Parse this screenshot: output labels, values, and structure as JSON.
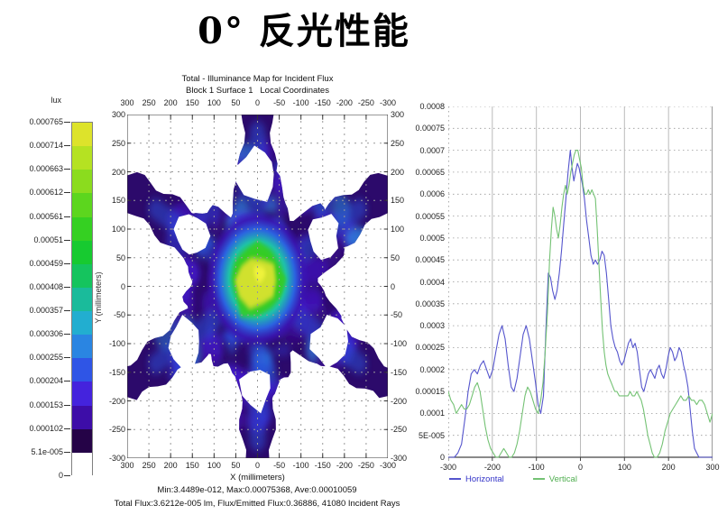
{
  "page_title": "0° 反光性能",
  "colorbar": {
    "unit": "lux",
    "labels_top_to_bottom": [
      "0.000765",
      "0.000714",
      "0.000663",
      "0.000612",
      "0.000561",
      "0.00051",
      "0.000459",
      "0.000408",
      "0.000357",
      "0.000306",
      "0.000255",
      "0.000204",
      "0.000153",
      "0.000102",
      "5.1e-005",
      "0"
    ],
    "segment_colors_top_to_bottom": [
      "#dde32b",
      "#b5e222",
      "#8bdc1e",
      "#5cd61e",
      "#35d022",
      "#17ca30",
      "#15c45e",
      "#1abb9b",
      "#22aed0",
      "#2a85e2",
      "#2f55e6",
      "#4423dd",
      "#3d0da8",
      "#250347",
      "#ffffff"
    ]
  },
  "map": {
    "title_line1": "Total - Illuminance Map for Incident Flux",
    "title_line2": "Block 1 Surface 1   Local Coordinates",
    "x_axis_label": "X (millimeters)",
    "y_axis_label": "Y (millimeters)",
    "x_ticks": [
      "300",
      "250",
      "200",
      "150",
      "100",
      "50",
      "0",
      "-50",
      "-100",
      "-150",
      "-200",
      "-250",
      "-300"
    ],
    "y_ticks": [
      "300",
      "250",
      "200",
      "150",
      "100",
      "50",
      "0",
      "-50",
      "-100",
      "-150",
      "-200",
      "-250",
      "-300"
    ],
    "stats_line1": "Min:3.4489e-012, Max:0.00075368, Ave:0.00010059",
    "stats_line2": "Total Flux:3.6212e-005 lm, Flux/Emitted Flux:0.36886, 41080 Incident Rays"
  },
  "chart_data": [
    {
      "type": "heatmap",
      "title": "Total - Illuminance Map for Incident Flux",
      "subtitle": "Block 1 Surface 1 Local Coordinates",
      "xlabel": "X (millimeters)",
      "ylabel": "Y (millimeters)",
      "units": "lux",
      "x_range": [
        300,
        -300
      ],
      "y_range": [
        -300,
        300
      ],
      "grid_step_mm": 50,
      "min": 3.4489e-12,
      "max": 0.00075368,
      "ave": 0.00010059,
      "total_flux_lm": 3.6212e-05,
      "flux_emitted_flux": 0.36886,
      "incident_rays": 41080,
      "colorbar_levels": [
        0,
        5.1e-05,
        0.000102,
        0.000153,
        0.000204,
        0.000255,
        0.000306,
        0.000357,
        0.000408,
        0.000459,
        0.00051,
        0.000561,
        0.000612,
        0.000663,
        0.000714,
        0.000765
      ],
      "pattern_description": "Six-fold snowflake-shaped illuminance footprint: bright yellow-green core near origin (r<60 mm), mottled blue/dark-violet body and six arms every 60° reaching r=300 mm, six white voids at r≈180 mm along the arm axes, white background elsewhere"
    },
    {
      "type": "line",
      "xlabel": "",
      "ylabel": "",
      "xlim": [
        -300,
        300
      ],
      "ylim": [
        0,
        0.0008
      ],
      "x_tick_values": [
        -300,
        -200,
        -100,
        0,
        100,
        200,
        300
      ],
      "x_tick_labels": [
        "-300",
        "-200",
        "-100",
        "0",
        "100",
        "200",
        "300"
      ],
      "y_tick_labels": [
        "0.0008",
        "0.00075",
        "0.0007",
        "0.00065",
        "0.0006",
        "0.00055",
        "0.0005",
        "0.00045",
        "0.0004",
        "0.00035",
        "0.0003",
        "0.00025",
        "0.0002",
        "0.00015",
        "0.0001",
        "5E-005",
        "0"
      ],
      "legend_position": "bottom",
      "grid": "horizontal dotted every 5e-5, vertical solid every 100",
      "y_point_scale": 1e-05,
      "series": [
        {
          "name": "Horizontal",
          "color": "#5555cd",
          "label_color": "#3434c8",
          "points": [
            [
              -300,
              0
            ],
            [
              -286,
              0
            ],
            [
              -278,
              1
            ],
            [
              -270,
              3
            ],
            [
              -262,
              9
            ],
            [
              -255,
              15
            ],
            [
              -248,
              19
            ],
            [
              -241,
              20
            ],
            [
              -234,
              19
            ],
            [
              -227,
              21
            ],
            [
              -220,
              22
            ],
            [
              -213,
              20
            ],
            [
              -206,
              18
            ],
            [
              -199,
              20
            ],
            [
              -192,
              24
            ],
            [
              -185,
              28
            ],
            [
              -178,
              30
            ],
            [
              -171,
              27
            ],
            [
              -164,
              21
            ],
            [
              -157,
              16
            ],
            [
              -151,
              15
            ],
            [
              -144,
              18
            ],
            [
              -137,
              23
            ],
            [
              -130,
              28
            ],
            [
              -123,
              30
            ],
            [
              -116,
              27
            ],
            [
              -109,
              22
            ],
            [
              -102,
              17
            ],
            [
              -96,
              12
            ],
            [
              -90,
              10
            ],
            [
              -84,
              14
            ],
            [
              -78,
              30
            ],
            [
              -73,
              42
            ],
            [
              -68,
              41
            ],
            [
              -63,
              38
            ],
            [
              -58,
              36
            ],
            [
              -53,
              38
            ],
            [
              -48,
              42
            ],
            [
              -43,
              47
            ],
            [
              -38,
              53
            ],
            [
              -33,
              59
            ],
            [
              -28,
              65
            ],
            [
              -23,
              70
            ],
            [
              -19,
              66
            ],
            [
              -15,
              63
            ],
            [
              -11,
              65
            ],
            [
              -7,
              67
            ],
            [
              -3,
              66
            ],
            [
              1,
              64
            ],
            [
              5,
              62
            ],
            [
              9,
              59
            ],
            [
              14,
              54
            ],
            [
              19,
              50
            ],
            [
              24,
              46
            ],
            [
              29,
              44
            ],
            [
              34,
              45
            ],
            [
              39,
              44
            ],
            [
              44,
              45
            ],
            [
              49,
              47
            ],
            [
              54,
              46
            ],
            [
              59,
              42
            ],
            [
              64,
              36
            ],
            [
              69,
              30
            ],
            [
              74,
              27
            ],
            [
              79,
              25
            ],
            [
              84,
              24
            ],
            [
              89,
              22
            ],
            [
              94,
              21
            ],
            [
              99,
              22
            ],
            [
              104,
              24
            ],
            [
              109,
              26
            ],
            [
              114,
              27
            ],
            [
              119,
              25
            ],
            [
              124,
              26
            ],
            [
              129,
              24
            ],
            [
              134,
              20
            ],
            [
              139,
              16
            ],
            [
              144,
              15
            ],
            [
              149,
              17
            ],
            [
              154,
              19
            ],
            [
              159,
              20
            ],
            [
              164,
              19
            ],
            [
              169,
              18
            ],
            [
              174,
              20
            ],
            [
              179,
              21
            ],
            [
              184,
              19
            ],
            [
              189,
              18
            ],
            [
              194,
              20
            ],
            [
              199,
              23
            ],
            [
              204,
              25
            ],
            [
              209,
              24
            ],
            [
              214,
              22
            ],
            [
              219,
              23
            ],
            [
              224,
              25
            ],
            [
              229,
              24
            ],
            [
              234,
              21
            ],
            [
              239,
              19
            ],
            [
              244,
              16
            ],
            [
              249,
              11
            ],
            [
              254,
              6
            ],
            [
              259,
              2
            ],
            [
              264,
              1
            ],
            [
              269,
              0
            ],
            [
              285,
              0
            ],
            [
              300,
              0
            ]
          ]
        },
        {
          "name": "Vertical",
          "color": "#74c274",
          "label_color": "#4fae4f",
          "points": [
            [
              -300,
              15
            ],
            [
              -294,
              13
            ],
            [
              -288,
              12
            ],
            [
              -282,
              10
            ],
            [
              -276,
              11
            ],
            [
              -270,
              12
            ],
            [
              -264,
              11
            ],
            [
              -258,
              11
            ],
            [
              -252,
              12
            ],
            [
              -246,
              14
            ],
            [
              -240,
              16
            ],
            [
              -234,
              17
            ],
            [
              -228,
              15
            ],
            [
              -222,
              11
            ],
            [
              -216,
              7
            ],
            [
              -210,
              4
            ],
            [
              -204,
              2
            ],
            [
              -198,
              1
            ],
            [
              -192,
              0
            ],
            [
              -186,
              0
            ],
            [
              -180,
              1
            ],
            [
              -174,
              2
            ],
            [
              -168,
              1
            ],
            [
              -162,
              0
            ],
            [
              -156,
              0
            ],
            [
              -150,
              1
            ],
            [
              -144,
              3
            ],
            [
              -138,
              6
            ],
            [
              -132,
              10
            ],
            [
              -126,
              14
            ],
            [
              -120,
              16
            ],
            [
              -114,
              15
            ],
            [
              -108,
              13
            ],
            [
              -102,
              11
            ],
            [
              -96,
              10
            ],
            [
              -90,
              13
            ],
            [
              -85,
              17
            ],
            [
              -80,
              24
            ],
            [
              -75,
              33
            ],
            [
              -70,
              45
            ],
            [
              -66,
              52
            ],
            [
              -62,
              57
            ],
            [
              -58,
              55
            ],
            [
              -54,
              52
            ],
            [
              -50,
              50
            ],
            [
              -46,
              53
            ],
            [
              -42,
              57
            ],
            [
              -38,
              60
            ],
            [
              -34,
              62
            ],
            [
              -30,
              60
            ],
            [
              -26,
              62
            ],
            [
              -22,
              65
            ],
            [
              -18,
              67
            ],
            [
              -14,
              69
            ],
            [
              -10,
              70
            ],
            [
              -6,
              70
            ],
            [
              -2,
              68
            ],
            [
              2,
              66
            ],
            [
              6,
              62
            ],
            [
              10,
              60
            ],
            [
              14,
              60
            ],
            [
              18,
              61
            ],
            [
              22,
              60
            ],
            [
              26,
              61
            ],
            [
              30,
              60
            ],
            [
              34,
              59
            ],
            [
              38,
              52
            ],
            [
              42,
              44
            ],
            [
              46,
              36
            ],
            [
              50,
              29
            ],
            [
              54,
              24
            ],
            [
              58,
              21
            ],
            [
              62,
              19
            ],
            [
              66,
              18
            ],
            [
              70,
              17
            ],
            [
              74,
              16
            ],
            [
              78,
              15
            ],
            [
              83,
              15
            ],
            [
              88,
              14
            ],
            [
              93,
              14
            ],
            [
              98,
              14
            ],
            [
              103,
              14
            ],
            [
              108,
              14
            ],
            [
              113,
              15
            ],
            [
              118,
              14
            ],
            [
              123,
              14
            ],
            [
              128,
              15
            ],
            [
              133,
              14
            ],
            [
              138,
              13
            ],
            [
              143,
              11
            ],
            [
              148,
              8
            ],
            [
              153,
              5
            ],
            [
              158,
              3
            ],
            [
              163,
              1
            ],
            [
              168,
              0
            ],
            [
              174,
              0
            ],
            [
              180,
              1
            ],
            [
              186,
              3
            ],
            [
              192,
              6
            ],
            [
              198,
              8
            ],
            [
              204,
              10
            ],
            [
              210,
              11
            ],
            [
              216,
              12
            ],
            [
              222,
              13
            ],
            [
              228,
              14
            ],
            [
              234,
              13
            ],
            [
              240,
              13
            ],
            [
              246,
              14
            ],
            [
              252,
              13
            ],
            [
              258,
              13
            ],
            [
              264,
              12
            ],
            [
              270,
              13
            ],
            [
              276,
              13
            ],
            [
              282,
              12
            ],
            [
              288,
              10
            ],
            [
              294,
              8
            ],
            [
              300,
              10
            ]
          ]
        }
      ]
    }
  ]
}
